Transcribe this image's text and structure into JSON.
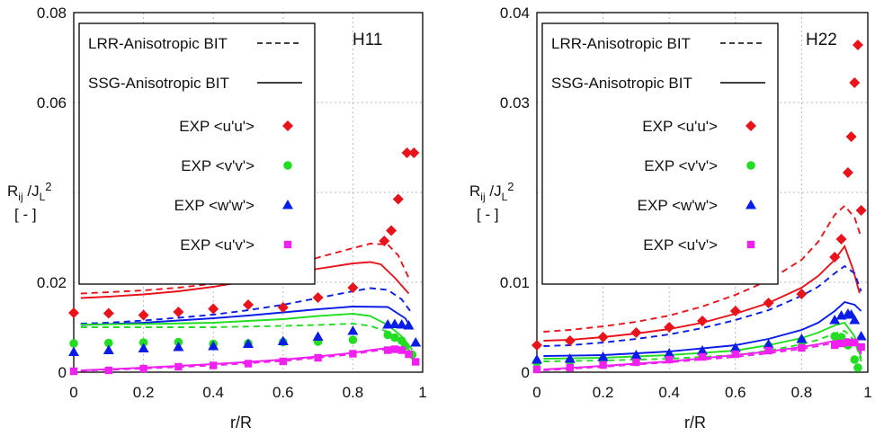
{
  "chart_data": [
    {
      "type": "line",
      "annotation": "H11",
      "xlabel": "r/R",
      "ylabel": "R_ij /J_L^2",
      "ylabel_unit": "[ - ]",
      "xlim": [
        0,
        0.98
      ],
      "ylim": [
        0,
        0.08
      ],
      "x_ticks": [
        "0",
        "0.2",
        "0.4",
        "0.6",
        "0.8",
        "1"
      ],
      "y_ticks": [
        "0",
        "0.02",
        "0.06",
        "0.08"
      ],
      "grid": true,
      "legend_position": "top-left",
      "legend": [
        {
          "label": "LRR-Anisotropic BIT",
          "style": "dashed-line",
          "color": "#000000"
        },
        {
          "label": "SSG-Anisotropic BIT",
          "style": "solid-line",
          "color": "#000000"
        },
        {
          "label": "EXP <u'u'>",
          "style": "marker",
          "marker": "diamond",
          "color": "#e8131b"
        },
        {
          "label": "EXP <v'v'>",
          "style": "marker",
          "marker": "circle",
          "color": "#22dd22"
        },
        {
          "label": "EXP <w'w'>",
          "style": "marker",
          "marker": "triangle",
          "color": "#0a1de8"
        },
        {
          "label": "EXP <u'v'>",
          "style": "marker",
          "marker": "square",
          "color": "#f020f0"
        }
      ],
      "lines": [
        {
          "model": "LRR",
          "dash": true,
          "color": "#e8131b",
          "x": [
            0.02,
            0.1,
            0.2,
            0.3,
            0.4,
            0.5,
            0.6,
            0.7,
            0.8,
            0.85,
            0.9,
            0.93,
            0.96
          ],
          "y": [
            0.0175,
            0.0178,
            0.0182,
            0.0188,
            0.0197,
            0.0212,
            0.0232,
            0.0255,
            0.0276,
            0.0286,
            0.0284,
            0.026,
            0.021
          ]
        },
        {
          "model": "SSG",
          "dash": false,
          "color": "#e8131b",
          "x": [
            0.02,
            0.1,
            0.2,
            0.3,
            0.4,
            0.5,
            0.6,
            0.7,
            0.8,
            0.85,
            0.88,
            0.92,
            0.96
          ],
          "y": [
            0.0165,
            0.0168,
            0.0173,
            0.018,
            0.019,
            0.0203,
            0.0217,
            0.023,
            0.0242,
            0.0245,
            0.024,
            0.021,
            0.0175
          ]
        },
        {
          "model": "LRR",
          "dash": true,
          "color": "#0a1de8",
          "x": [
            0.02,
            0.1,
            0.2,
            0.3,
            0.4,
            0.5,
            0.6,
            0.7,
            0.8,
            0.85,
            0.9,
            0.94,
            0.97
          ],
          "y": [
            0.0108,
            0.011,
            0.0115,
            0.0121,
            0.0128,
            0.0138,
            0.015,
            0.0165,
            0.018,
            0.0187,
            0.0183,
            0.0162,
            0.013
          ]
        },
        {
          "model": "SSG",
          "dash": false,
          "color": "#0a1de8",
          "x": [
            0.02,
            0.1,
            0.2,
            0.3,
            0.4,
            0.5,
            0.6,
            0.7,
            0.8,
            0.9,
            0.95,
            0.97
          ],
          "y": [
            0.0105,
            0.0107,
            0.011,
            0.0115,
            0.012,
            0.0126,
            0.0133,
            0.014,
            0.0146,
            0.0145,
            0.012,
            0.0095
          ]
        },
        {
          "model": "SSG",
          "dash": false,
          "color": "#22dd22",
          "x": [
            0.02,
            0.2,
            0.4,
            0.6,
            0.7,
            0.8,
            0.85,
            0.9,
            0.94,
            0.97
          ],
          "y": [
            0.0106,
            0.0107,
            0.011,
            0.0118,
            0.0125,
            0.013,
            0.0125,
            0.0105,
            0.008,
            0.005
          ]
        },
        {
          "model": "LRR",
          "dash": true,
          "color": "#22dd22",
          "x": [
            0.02,
            0.2,
            0.4,
            0.6,
            0.7,
            0.8,
            0.85,
            0.9,
            0.94,
            0.97
          ],
          "y": [
            0.01,
            0.01,
            0.01,
            0.0103,
            0.0105,
            0.0108,
            0.0103,
            0.009,
            0.007,
            0.004
          ]
        },
        {
          "model": "LRR",
          "dash": true,
          "color": "#f020f0",
          "x": [
            0.02,
            0.2,
            0.4,
            0.6,
            0.7,
            0.8,
            0.85,
            0.9,
            0.94,
            0.97
          ],
          "y": [
            0.0003,
            0.0008,
            0.0015,
            0.0025,
            0.0032,
            0.004,
            0.0046,
            0.0051,
            0.0048,
            0.003
          ]
        },
        {
          "model": "SSG",
          "dash": false,
          "color": "#f020f0",
          "x": [
            0.02,
            0.2,
            0.4,
            0.6,
            0.7,
            0.8,
            0.85,
            0.9,
            0.94,
            0.97
          ],
          "y": [
            0.0004,
            0.001,
            0.0018,
            0.0028,
            0.0035,
            0.0043,
            0.0049,
            0.0054,
            0.005,
            0.0032
          ]
        }
      ],
      "markers": [
        {
          "name": "EXP <u'u'>",
          "marker": "diamond",
          "color": "#e8131b",
          "x": [
            0,
            0.1,
            0.2,
            0.3,
            0.4,
            0.5,
            0.6,
            0.7,
            0.8,
            0.89,
            0.91,
            0.93,
            0.955,
            0.975
          ],
          "y": [
            0.0132,
            0.0131,
            0.0127,
            0.0134,
            0.0141,
            0.015,
            0.0144,
            0.0166,
            0.0188,
            0.0292,
            0.0315,
            0.0385,
            0.0488,
            0.0488
          ]
        },
        {
          "name": "EXP <v'v'>",
          "marker": "circle",
          "color": "#22dd22",
          "x": [
            0,
            0.1,
            0.2,
            0.3,
            0.4,
            0.5,
            0.6,
            0.7,
            0.8,
            0.9,
            0.92,
            0.94,
            0.95,
            0.97
          ],
          "y": [
            0.0064,
            0.0065,
            0.0066,
            0.0067,
            0.0063,
            0.0064,
            0.0067,
            0.0068,
            0.0072,
            0.0083,
            0.0077,
            0.007,
            0.0058,
            0.0039
          ]
        },
        {
          "name": "EXP <w'w'>",
          "marker": "triangle",
          "color": "#0a1de8",
          "x": [
            0,
            0.1,
            0.2,
            0.3,
            0.4,
            0.5,
            0.6,
            0.7,
            0.8,
            0.9,
            0.92,
            0.94,
            0.96,
            0.98
          ],
          "y": [
            0.0045,
            0.0049,
            0.0053,
            0.0056,
            0.0058,
            0.0063,
            0.0069,
            0.0079,
            0.0092,
            0.0106,
            0.0107,
            0.0106,
            0.0104,
            0.0066
          ]
        },
        {
          "name": "EXP <u'v'>",
          "marker": "square",
          "color": "#f020f0",
          "x": [
            0,
            0.1,
            0.2,
            0.3,
            0.4,
            0.5,
            0.6,
            0.7,
            0.8,
            0.9,
            0.92,
            0.94,
            0.96,
            0.98
          ],
          "y": [
            0.0002,
            0.0004,
            0.0008,
            0.0012,
            0.0015,
            0.0019,
            0.0024,
            0.0032,
            0.0041,
            0.0049,
            0.0051,
            0.0049,
            0.004,
            0.0023
          ]
        }
      ]
    },
    {
      "type": "line",
      "annotation": "H22",
      "xlabel": "r/R",
      "ylabel": "R_ij /J_L^2",
      "ylabel_unit": "[ - ]",
      "xlim": [
        0,
        0.98
      ],
      "ylim": [
        0,
        0.04
      ],
      "x_ticks": [
        "0",
        "0.2",
        "0.4",
        "0.6",
        "0.8",
        "1"
      ],
      "y_ticks": [
        "0",
        "0.01",
        "0.03",
        "0.04"
      ],
      "grid": true,
      "legend_position": "top-left",
      "legend": [
        {
          "label": "LRR-Anisotropic BIT",
          "style": "dashed-line",
          "color": "#000000"
        },
        {
          "label": "SSG-Anisotropic BIT",
          "style": "solid-line",
          "color": "#000000"
        },
        {
          "label": "EXP <u'u'>",
          "style": "marker",
          "marker": "diamond",
          "color": "#e8131b"
        },
        {
          "label": "EXP <v'v'>",
          "style": "marker",
          "marker": "circle",
          "color": "#22dd22"
        },
        {
          "label": "EXP <w'w'>",
          "style": "marker",
          "marker": "triangle",
          "color": "#0a1de8"
        },
        {
          "label": "EXP <u'v'>",
          "style": "marker",
          "marker": "square",
          "color": "#f020f0"
        }
      ],
      "lines": [
        {
          "model": "LRR",
          "dash": true,
          "color": "#e8131b",
          "x": [
            0.02,
            0.1,
            0.2,
            0.3,
            0.4,
            0.5,
            0.6,
            0.7,
            0.8,
            0.85,
            0.9,
            0.93,
            0.96,
            0.98
          ],
          "y": [
            0.0045,
            0.0047,
            0.0051,
            0.0056,
            0.0063,
            0.0073,
            0.0086,
            0.0102,
            0.0125,
            0.0145,
            0.0175,
            0.0185,
            0.0172,
            0.015
          ]
        },
        {
          "model": "SSG",
          "dash": false,
          "color": "#e8131b",
          "x": [
            0.02,
            0.1,
            0.2,
            0.3,
            0.4,
            0.5,
            0.6,
            0.7,
            0.8,
            0.85,
            0.9,
            0.93,
            0.955,
            0.975
          ],
          "y": [
            0.0035,
            0.0036,
            0.0039,
            0.0043,
            0.0048,
            0.0055,
            0.0065,
            0.0077,
            0.0094,
            0.0107,
            0.0125,
            0.014,
            0.0115,
            0.0088
          ]
        },
        {
          "model": "LRR",
          "dash": true,
          "color": "#0a1de8",
          "x": [
            0.02,
            0.1,
            0.2,
            0.3,
            0.4,
            0.5,
            0.6,
            0.7,
            0.8,
            0.85,
            0.9,
            0.93,
            0.96,
            0.98
          ],
          "y": [
            0.0029,
            0.003,
            0.0033,
            0.0037,
            0.0042,
            0.0049,
            0.0058,
            0.0069,
            0.0085,
            0.0095,
            0.011,
            0.0118,
            0.011,
            0.009
          ]
        },
        {
          "model": "SSG",
          "dash": false,
          "color": "#0a1de8",
          "x": [
            0.02,
            0.2,
            0.4,
            0.6,
            0.7,
            0.8,
            0.85,
            0.9,
            0.93,
            0.96,
            0.98
          ],
          "y": [
            0.0018,
            0.0019,
            0.0023,
            0.003,
            0.0037,
            0.0047,
            0.0055,
            0.0068,
            0.0078,
            0.0075,
            0.0068
          ]
        },
        {
          "model": "SSG",
          "dash": false,
          "color": "#22dd22",
          "x": [
            0.02,
            0.2,
            0.4,
            0.6,
            0.7,
            0.8,
            0.85,
            0.9,
            0.93,
            0.96,
            0.98
          ],
          "y": [
            0.0015,
            0.0016,
            0.0019,
            0.0024,
            0.003,
            0.0038,
            0.0044,
            0.0052,
            0.0055,
            0.004,
            0.0015
          ]
        },
        {
          "model": "LRR",
          "dash": true,
          "color": "#22dd22",
          "x": [
            0.02,
            0.2,
            0.4,
            0.6,
            0.7,
            0.8,
            0.85,
            0.9,
            0.93,
            0.96,
            0.98
          ],
          "y": [
            0.0012,
            0.0013,
            0.0015,
            0.0019,
            0.0024,
            0.0031,
            0.0036,
            0.0043,
            0.0046,
            0.0035,
            0.0012
          ]
        },
        {
          "model": "LRR",
          "dash": true,
          "color": "#f020f0",
          "x": [
            0.02,
            0.2,
            0.4,
            0.6,
            0.7,
            0.8,
            0.85,
            0.9,
            0.94,
            0.97,
            0.98
          ],
          "y": [
            0.0002,
            0.0006,
            0.0011,
            0.0017,
            0.0021,
            0.0026,
            0.0029,
            0.0033,
            0.0035,
            0.003,
            0.002
          ]
        },
        {
          "model": "SSG",
          "dash": false,
          "color": "#f020f0",
          "x": [
            0.02,
            0.2,
            0.4,
            0.6,
            0.7,
            0.8,
            0.85,
            0.9,
            0.94,
            0.97,
            0.98
          ],
          "y": [
            0.0003,
            0.0007,
            0.0012,
            0.0019,
            0.0023,
            0.0028,
            0.0031,
            0.0035,
            0.0037,
            0.0032,
            0.0022
          ]
        }
      ],
      "markers": [
        {
          "name": "EXP <u'u'>",
          "marker": "diamond",
          "color": "#e8131b",
          "x": [
            0,
            0.1,
            0.2,
            0.3,
            0.4,
            0.5,
            0.6,
            0.7,
            0.8,
            0.9,
            0.92,
            0.94,
            0.95,
            0.96,
            0.97,
            0.98
          ],
          "y": [
            0.003,
            0.0035,
            0.0039,
            0.0044,
            0.005,
            0.0057,
            0.0068,
            0.0077,
            0.0087,
            0.0128,
            0.0148,
            0.0222,
            0.0262,
            0.0322,
            0.0364,
            0.018
          ]
        },
        {
          "name": "EXP <v'v'>",
          "marker": "circle",
          "color": "#22dd22",
          "x": [
            0,
            0.1,
            0.2,
            0.3,
            0.4,
            0.5,
            0.6,
            0.7,
            0.8,
            0.9,
            0.92,
            0.94,
            0.96,
            0.97
          ],
          "y": [
            0.0011,
            0.0012,
            0.0013,
            0.0015,
            0.0017,
            0.002,
            0.0024,
            0.0029,
            0.0035,
            0.004,
            0.0039,
            0.003,
            0.0014,
            0.0005
          ]
        },
        {
          "name": "EXP <w'w'>",
          "marker": "triangle",
          "color": "#0a1de8",
          "x": [
            0,
            0.1,
            0.2,
            0.3,
            0.4,
            0.5,
            0.6,
            0.7,
            0.8,
            0.9,
            0.92,
            0.94,
            0.95,
            0.96,
            0.98
          ],
          "y": [
            0.0014,
            0.0015,
            0.0017,
            0.0019,
            0.0021,
            0.0024,
            0.0027,
            0.0031,
            0.0037,
            0.0058,
            0.0063,
            0.0065,
            0.0064,
            0.0058,
            0.004
          ]
        },
        {
          "name": "EXP <u'v'>",
          "marker": "square",
          "color": "#f020f0",
          "x": [
            0,
            0.1,
            0.2,
            0.3,
            0.4,
            0.5,
            0.6,
            0.7,
            0.8,
            0.9,
            0.92,
            0.94,
            0.96,
            0.98
          ],
          "y": [
            0.0003,
            0.0005,
            0.0008,
            0.0011,
            0.0014,
            0.0017,
            0.002,
            0.0024,
            0.0027,
            0.003,
            0.0032,
            0.0033,
            0.0033,
            0.0028
          ]
        }
      ]
    }
  ]
}
